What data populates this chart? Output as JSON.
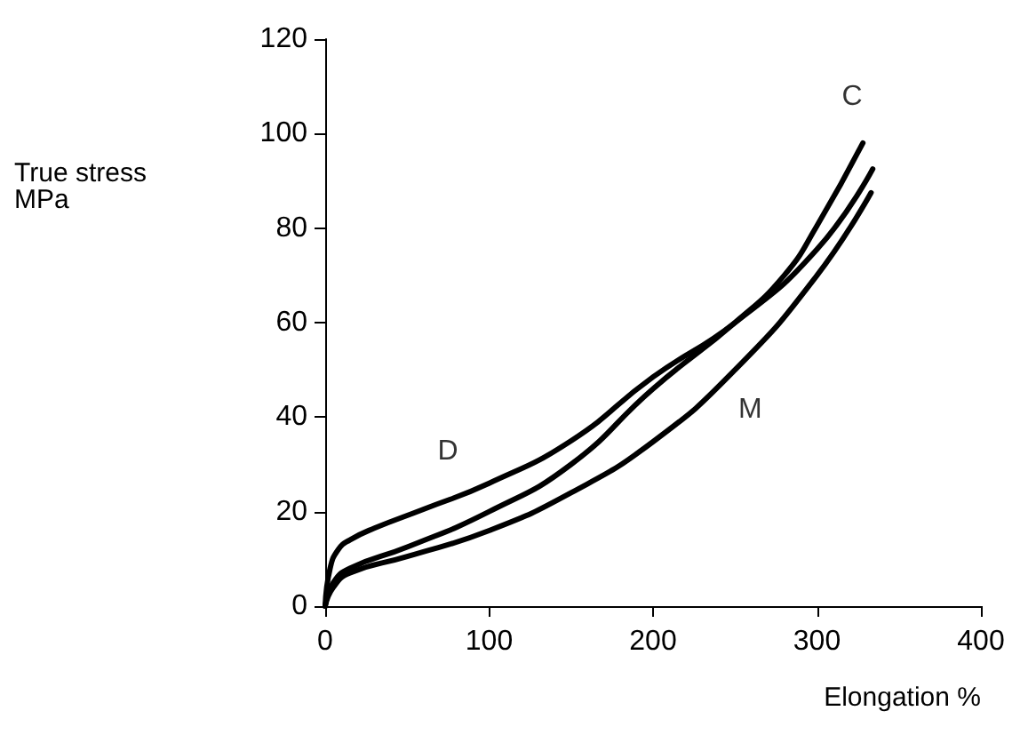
{
  "chart_data": {
    "type": "line",
    "xlabel": "Elongation %",
    "ylabel": "True stress\nMPa",
    "xlim": [
      0,
      400
    ],
    "xticks": [
      0,
      100,
      200,
      300,
      400
    ],
    "ylim": [
      0,
      120
    ],
    "yticks": [
      0,
      20,
      40,
      60,
      80,
      100,
      120
    ],
    "grid": false,
    "marker": "none",
    "line_style": "solid",
    "series": [
      {
        "name": "D",
        "color": "#000000",
        "x": [
          0,
          3,
          8,
          15,
          30,
          60,
          100,
          150,
          200,
          250,
          300,
          334
        ],
        "values": [
          0,
          8,
          12,
          14,
          16.5,
          20.5,
          26,
          35,
          48.5,
          60,
          75.5,
          92.5
        ]
      },
      {
        "name": "C",
        "color": "#000000",
        "x": [
          0,
          5,
          15,
          50,
          100,
          150,
          200,
          250,
          280,
          300,
          328
        ],
        "values": [
          0,
          5,
          8,
          12.5,
          20,
          30,
          46,
          60,
          70,
          80.5,
          98
        ]
      },
      {
        "name": "M",
        "color": "#000000",
        "x": [
          0,
          5,
          15,
          50,
          100,
          150,
          200,
          250,
          300,
          333
        ],
        "values": [
          0,
          4,
          7,
          10.5,
          16,
          24,
          34.8,
          50,
          70,
          87.5
        ]
      }
    ]
  }
}
